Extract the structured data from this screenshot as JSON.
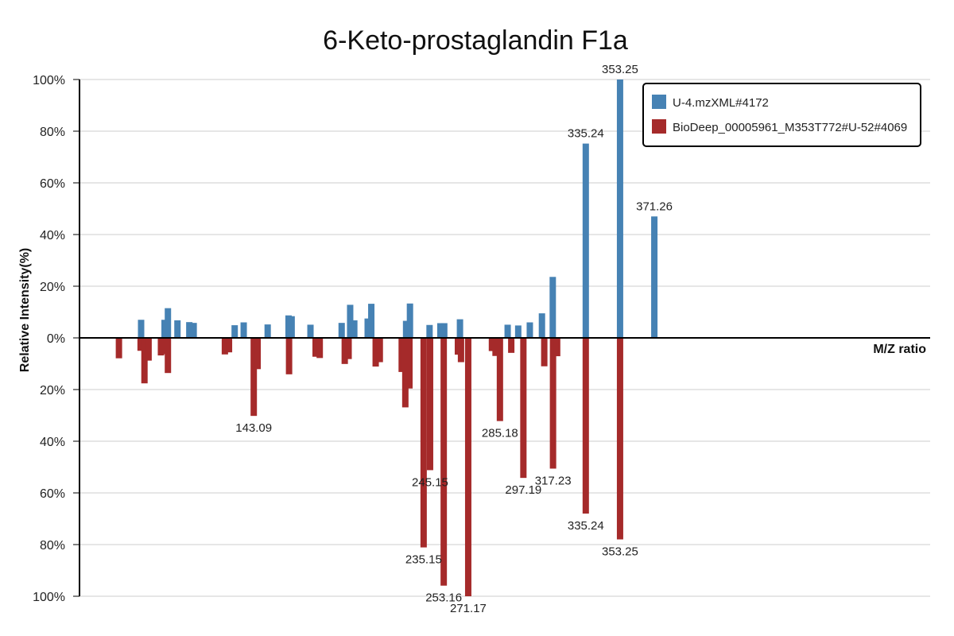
{
  "title": "6-Keto-prostaglandin F1a",
  "colors": {
    "top": "#4682b4",
    "bottom": "#a52a2a",
    "grid": "#dddddd",
    "axis": "#000000"
  },
  "chart_data": {
    "type": "bar",
    "subtype": "mirror mass spectrum",
    "title": "6-Keto-prostaglandin F1a",
    "xlabel": "M/Z ratio",
    "ylabel": "Relative Intensity(%)",
    "xlim": [
      60,
      390
    ],
    "ylim": [
      -100,
      100
    ],
    "yticks": [
      {
        "value": 100,
        "label": "100%"
      },
      {
        "value": 80,
        "label": "80%"
      },
      {
        "value": 60,
        "label": "60%"
      },
      {
        "value": 40,
        "label": "40%"
      },
      {
        "value": 20,
        "label": "20%"
      },
      {
        "value": 0,
        "label": "0%"
      },
      {
        "value": -20,
        "label": "20%"
      },
      {
        "value": -40,
        "label": "40%"
      },
      {
        "value": -60,
        "label": "60%"
      },
      {
        "value": -80,
        "label": "80%"
      },
      {
        "value": -100,
        "label": "100%"
      }
    ],
    "grid": true,
    "legend_position": "top-right",
    "series": [
      {
        "name": "U-4.mzXML#4172",
        "direction": "up",
        "peaks": [
          {
            "mz": 83.9,
            "intensity": 7.0
          },
          {
            "mz": 93.0,
            "intensity": 7.0
          },
          {
            "mz": 94.3,
            "intensity": 11.5
          },
          {
            "mz": 98.0,
            "intensity": 6.8
          },
          {
            "mz": 102.6,
            "intensity": 6.1
          },
          {
            "mz": 104.3,
            "intensity": 5.8
          },
          {
            "mz": 120.2,
            "intensity": 4.9
          },
          {
            "mz": 123.7,
            "intensity": 6.0
          },
          {
            "mz": 133.0,
            "intensity": 5.2
          },
          {
            "mz": 141.1,
            "intensity": 8.7
          },
          {
            "mz": 142.3,
            "intensity": 8.4
          },
          {
            "mz": 149.6,
            "intensity": 5.1
          },
          {
            "mz": 161.7,
            "intensity": 5.8
          },
          {
            "mz": 165.0,
            "intensity": 12.8
          },
          {
            "mz": 166.6,
            "intensity": 6.8
          },
          {
            "mz": 171.8,
            "intensity": 7.5
          },
          {
            "mz": 173.2,
            "intensity": 13.2
          },
          {
            "mz": 186.7,
            "intensity": 6.6
          },
          {
            "mz": 188.2,
            "intensity": 13.3
          },
          {
            "mz": 195.8,
            "intensity": 5.0
          },
          {
            "mz": 200.0,
            "intensity": 5.7
          },
          {
            "mz": 201.5,
            "intensity": 5.7
          },
          {
            "mz": 207.6,
            "intensity": 7.2
          },
          {
            "mz": 226.1,
            "intensity": 5.1
          },
          {
            "mz": 230.2,
            "intensity": 4.8
          },
          {
            "mz": 234.7,
            "intensity": 6.0
          },
          {
            "mz": 239.4,
            "intensity": 9.5
          },
          {
            "mz": 243.6,
            "intensity": 23.6
          },
          {
            "mz": 256.4,
            "intensity": 75.2
          },
          {
            "mz": 269.7,
            "intensity": 100.0
          },
          {
            "mz": 283.0,
            "intensity": 47.0
          }
        ],
        "labels": [
          {
            "mz": 256.4,
            "intensity": 75.2,
            "text": "335.24"
          },
          {
            "mz": 269.7,
            "intensity": 100.0,
            "text": "353.25"
          },
          {
            "mz": 283.0,
            "intensity": 47.0,
            "text": "371.26"
          }
        ]
      },
      {
        "name": "BioDeep_00005961_M353T772#U-52#4069",
        "direction": "down",
        "peaks": [
          {
            "mz": 75.3,
            "intensity": 7.9
          },
          {
            "mz": 83.7,
            "intensity": 5.0
          },
          {
            "mz": 85.2,
            "intensity": 17.6
          },
          {
            "mz": 86.8,
            "intensity": 8.8
          },
          {
            "mz": 91.6,
            "intensity": 6.8
          },
          {
            "mz": 92.7,
            "intensity": 6.3
          },
          {
            "mz": 94.3,
            "intensity": 13.6
          },
          {
            "mz": 116.4,
            "intensity": 6.4
          },
          {
            "mz": 118.0,
            "intensity": 5.6
          },
          {
            "mz": 127.6,
            "intensity": 30.2
          },
          {
            "mz": 129.1,
            "intensity": 12.1
          },
          {
            "mz": 141.3,
            "intensity": 14.1
          },
          {
            "mz": 151.6,
            "intensity": 7.3
          },
          {
            "mz": 153.2,
            "intensity": 7.8
          },
          {
            "mz": 162.9,
            "intensity": 10.1
          },
          {
            "mz": 164.4,
            "intensity": 8.2
          },
          {
            "mz": 174.9,
            "intensity": 11.1
          },
          {
            "mz": 176.5,
            "intensity": 9.4
          },
          {
            "mz": 185.0,
            "intensity": 13.2
          },
          {
            "mz": 186.4,
            "intensity": 26.9
          },
          {
            "mz": 188.0,
            "intensity": 19.6
          },
          {
            "mz": 193.5,
            "intensity": 81.1
          },
          {
            "mz": 196.0,
            "intensity": 51.2
          },
          {
            "mz": 201.3,
            "intensity": 95.9
          },
          {
            "mz": 206.8,
            "intensity": 6.5
          },
          {
            "mz": 208.0,
            "intensity": 9.4
          },
          {
            "mz": 210.8,
            "intensity": 100.0
          },
          {
            "mz": 220.0,
            "intensity": 5.1
          },
          {
            "mz": 221.4,
            "intensity": 7.0
          },
          {
            "mz": 223.1,
            "intensity": 32.2
          },
          {
            "mz": 227.5,
            "intensity": 5.8
          },
          {
            "mz": 232.2,
            "intensity": 54.2
          },
          {
            "mz": 240.3,
            "intensity": 11.0
          },
          {
            "mz": 243.7,
            "intensity": 50.6
          },
          {
            "mz": 245.3,
            "intensity": 7.1
          },
          {
            "mz": 256.4,
            "intensity": 68.0
          },
          {
            "mz": 269.7,
            "intensity": 78.0
          }
        ],
        "labels": [
          {
            "mz": 127.6,
            "intensity": 30.2,
            "text": "143.09"
          },
          {
            "mz": 193.5,
            "intensity": 81.1,
            "text": "235.15"
          },
          {
            "mz": 196.0,
            "intensity": 51.2,
            "text": "245.15"
          },
          {
            "mz": 201.3,
            "intensity": 95.9,
            "text": "253.16"
          },
          {
            "mz": 210.8,
            "intensity": 100.0,
            "text": "271.17"
          },
          {
            "mz": 223.1,
            "intensity": 32.2,
            "text": "285.18"
          },
          {
            "mz": 232.2,
            "intensity": 54.2,
            "text": "297.19"
          },
          {
            "mz": 243.7,
            "intensity": 50.6,
            "text": "317.23"
          },
          {
            "mz": 256.4,
            "intensity": 68.0,
            "text": "335.24"
          },
          {
            "mz": 269.7,
            "intensity": 78.0,
            "text": "353.25"
          }
        ]
      }
    ]
  }
}
